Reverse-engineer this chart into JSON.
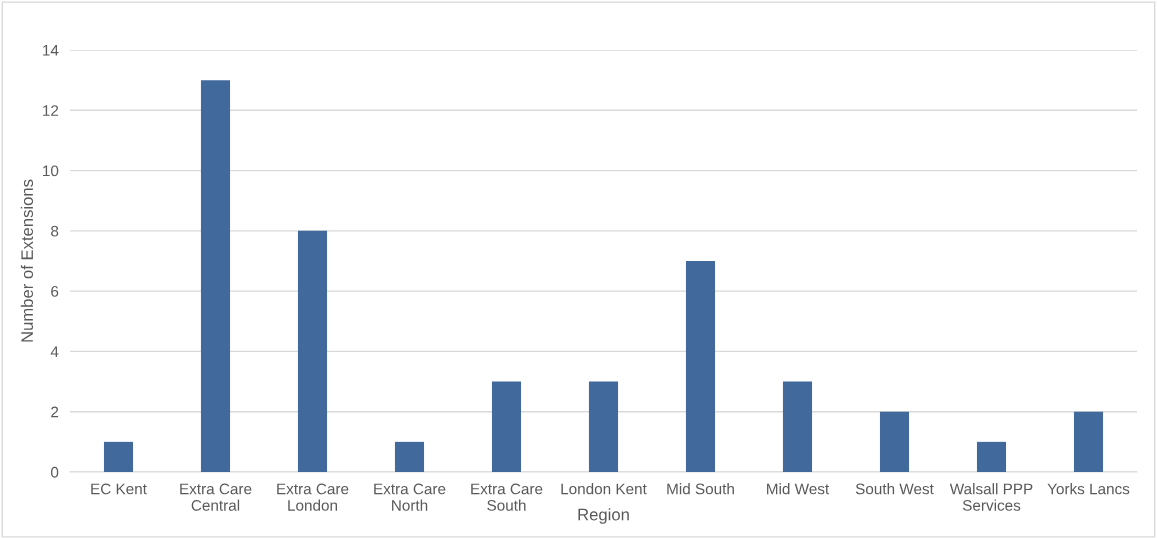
{
  "chart_data": {
    "type": "bar",
    "xlabel": "Region",
    "ylabel": "Number of Extensions",
    "categories": [
      "EC Kent",
      "Extra Care Central",
      "Extra Care London",
      "Extra Care North",
      "Extra Care South",
      "London Kent",
      "Mid South",
      "Mid West",
      "South West",
      "Walsall PPP Services",
      "Yorks Lancs"
    ],
    "values": [
      1,
      13,
      8,
      1,
      3,
      3,
      7,
      3,
      2,
      1,
      2
    ],
    "color": "#41699c",
    "ylim": [
      0,
      14
    ],
    "yticks": [
      0,
      2,
      4,
      6,
      8,
      10,
      12,
      14
    ],
    "grid": "y",
    "legend": false
  }
}
